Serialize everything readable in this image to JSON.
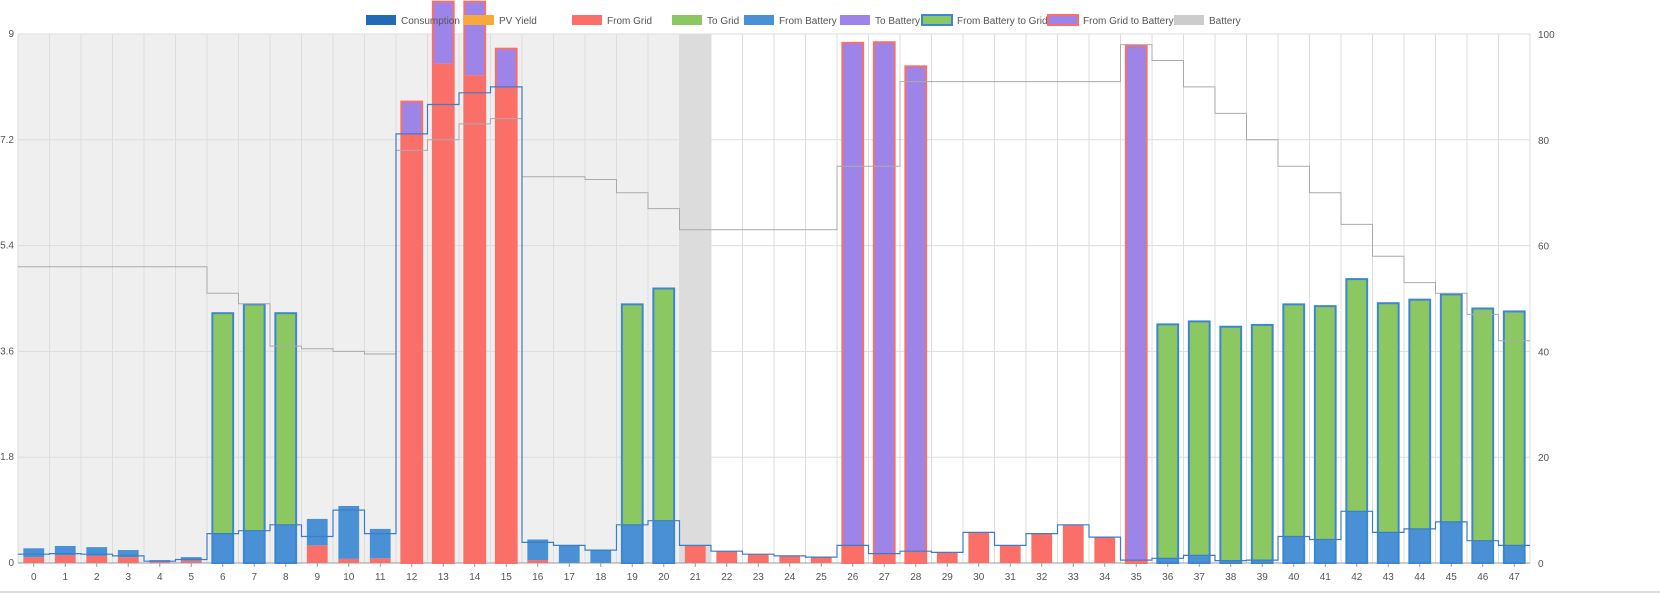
{
  "chart_data": {
    "type": "bar",
    "title": "",
    "xlabel": "",
    "ylabel": "",
    "categories": [
      "0",
      "1",
      "2",
      "3",
      "4",
      "5",
      "6",
      "7",
      "8",
      "9",
      "10",
      "11",
      "12",
      "13",
      "14",
      "15",
      "16",
      "17",
      "18",
      "19",
      "20",
      "21",
      "22",
      "23",
      "24",
      "25",
      "26",
      "27",
      "28",
      "29",
      "30",
      "31",
      "32",
      "33",
      "34",
      "35",
      "36",
      "37",
      "38",
      "39",
      "40",
      "41",
      "42",
      "43",
      "44",
      "45",
      "46",
      "47"
    ],
    "y_left": {
      "min": 0,
      "max": 9,
      "ticks": [
        "0",
        "1.8",
        "3.6",
        "5.4",
        "7.2",
        "9"
      ]
    },
    "y_right": {
      "min": 0,
      "max": 100,
      "ticks": [
        "0",
        "20",
        "40",
        "60",
        "80",
        "100"
      ]
    },
    "legend": [
      {
        "name": "Consumption",
        "color": "#1f6bb5",
        "border": ""
      },
      {
        "name": "PV Yield",
        "color": "#f9a93a",
        "border": ""
      },
      {
        "name": "From Grid",
        "color": "#fa7068",
        "border": ""
      },
      {
        "name": "To Grid",
        "color": "#8bc862",
        "border": ""
      },
      {
        "name": "From Battery",
        "color": "#4a90d4",
        "border": ""
      },
      {
        "name": "To Battery",
        "color": "#9d84e8",
        "border": ""
      },
      {
        "name": "From Battery to Grid",
        "color": "#8bc862",
        "border": "#3d86d1"
      },
      {
        "name": "From Grid to Battery",
        "color": "#9d84e8",
        "border": "#fa7068"
      },
      {
        "name": "Battery",
        "color": "#cccccc",
        "border": ""
      }
    ],
    "shading": {
      "shaded_until": 21.5,
      "highlight_category": "21"
    },
    "series": [
      {
        "name": "From Grid",
        "color": "#fa7068",
        "values": [
          0.1,
          0.13,
          0.12,
          0.1,
          0.02,
          0.04,
          0.0,
          0.0,
          0.0,
          0.3,
          0.07,
          0.08,
          7.3,
          8.5,
          8.3,
          8.1,
          0.05,
          0.0,
          0.0,
          0.0,
          0.0,
          0.3,
          0.2,
          0.15,
          0.12,
          0.1,
          0.3,
          0.16,
          0.2,
          0.18,
          0.52,
          0.3,
          0.5,
          0.65,
          0.44,
          0.05,
          0.0,
          0.0,
          0.0,
          0.0,
          0.0,
          0.0,
          0.0,
          0.0,
          0.0,
          0.0,
          0.0,
          0.0
        ]
      },
      {
        "name": "From Battery",
        "color": "#4a90d4",
        "values": [
          0.15,
          0.16,
          0.15,
          0.12,
          0.03,
          0.06,
          0.5,
          0.55,
          0.65,
          0.45,
          0.9,
          0.5,
          0.0,
          0.0,
          0.0,
          0.0,
          0.35,
          0.3,
          0.22,
          0.65,
          0.72,
          0.0,
          0.0,
          0.0,
          0.0,
          0.0,
          0.0,
          0.0,
          0.0,
          0.0,
          0.0,
          0.0,
          0.0,
          0.0,
          0.0,
          0.0,
          0.08,
          0.13,
          0.04,
          0.05,
          0.45,
          0.4,
          0.88,
          0.52,
          0.58,
          0.7,
          0.38,
          0.3
        ]
      },
      {
        "name": "To Battery",
        "color": "#9d84e8",
        "values": [
          0,
          0,
          0,
          0,
          0,
          0,
          0,
          0,
          0,
          0,
          0,
          0,
          0.55,
          1.05,
          1.25,
          0.65,
          0,
          0,
          0,
          0,
          0,
          0,
          0,
          0,
          0,
          0,
          8.55,
          8.7,
          8.25,
          0,
          0,
          0,
          0,
          0,
          0,
          8.75,
          0,
          0,
          0,
          0,
          0,
          0,
          0,
          0,
          0,
          0,
          0,
          0
        ]
      },
      {
        "name": "To Grid",
        "color": "#8bc862",
        "values": [
          0,
          0,
          0,
          0,
          0,
          0,
          3.75,
          3.85,
          3.6,
          0,
          0,
          0,
          0,
          0,
          0,
          0,
          0,
          0,
          0,
          3.75,
          3.95,
          0,
          0,
          0,
          0,
          0,
          0,
          0,
          0,
          0,
          0,
          0,
          0,
          0,
          0,
          0,
          3.98,
          3.98,
          3.98,
          4.0,
          3.95,
          3.97,
          3.95,
          3.9,
          3.9,
          3.87,
          3.95,
          3.98
        ]
      },
      {
        "name": "Consumption",
        "color": "#3d7cc9",
        "values": [
          0.15,
          0.16,
          0.15,
          0.12,
          0.03,
          0.06,
          0.5,
          0.55,
          0.65,
          0.45,
          0.9,
          0.5,
          7.3,
          7.8,
          8.0,
          8.1,
          0.35,
          0.3,
          0.22,
          0.65,
          0.72,
          0.3,
          0.2,
          0.15,
          0.12,
          0.1,
          0.3,
          0.16,
          0.2,
          0.18,
          0.52,
          0.3,
          0.5,
          0.65,
          0.44,
          0.05,
          0.08,
          0.13,
          0.04,
          0.05,
          0.45,
          0.4,
          0.88,
          0.52,
          0.58,
          0.7,
          0.38,
          0.3
        ]
      },
      {
        "name": "Battery",
        "color": "#bbbbbb",
        "values": [
          56,
          56,
          56,
          56,
          56,
          56,
          51,
          49,
          41,
          40.5,
          40,
          39.5,
          78,
          80,
          83,
          84,
          73,
          73,
          72.5,
          70,
          67,
          63,
          63,
          63,
          63,
          63,
          75,
          75,
          91,
          91,
          91,
          91,
          91,
          91,
          91,
          98,
          95,
          90,
          85,
          80,
          75,
          70,
          64,
          58,
          53,
          51,
          47,
          42
        ]
      }
    ]
  }
}
